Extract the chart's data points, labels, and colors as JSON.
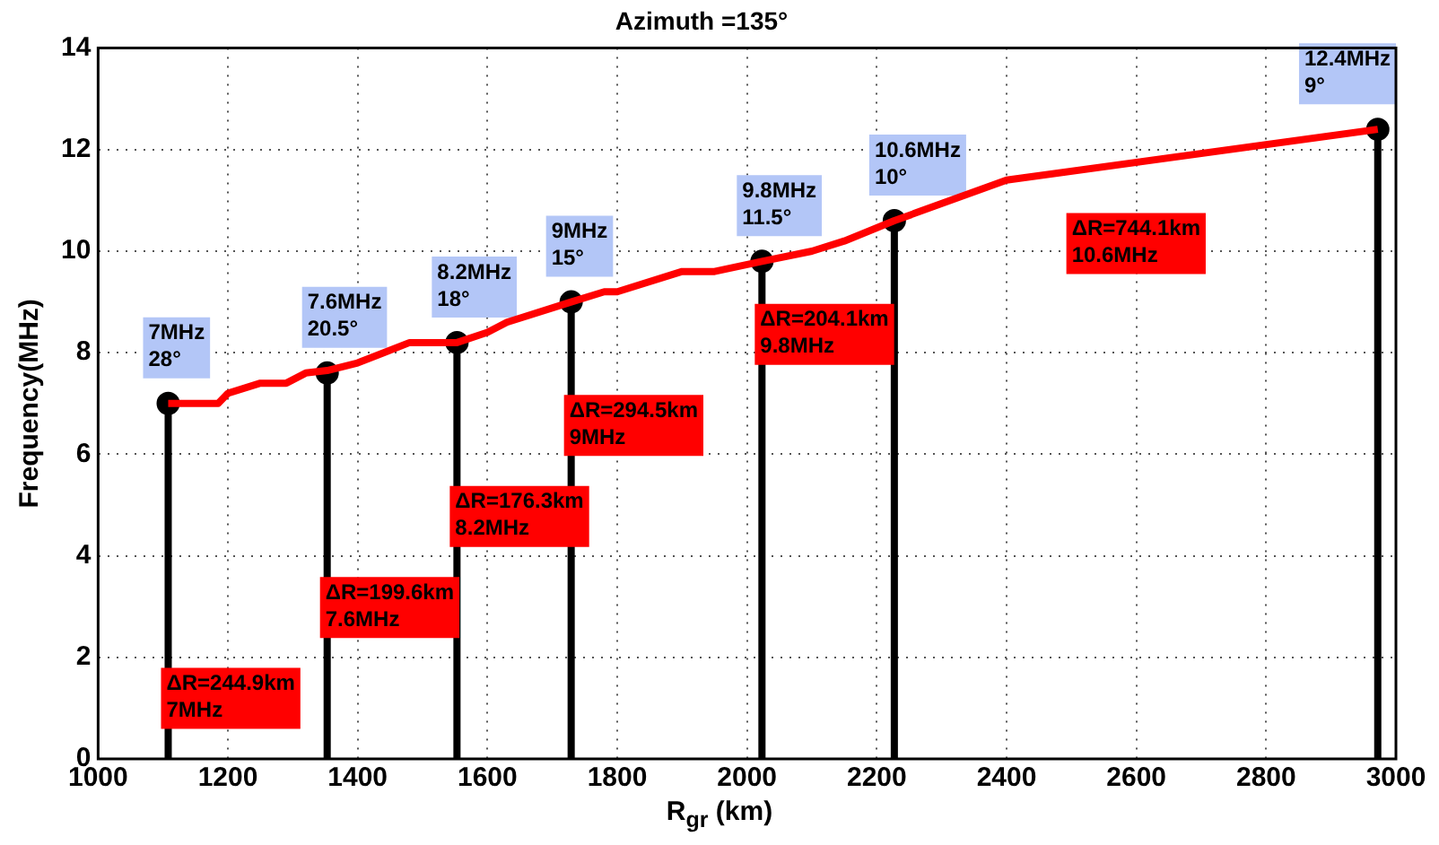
{
  "chart_data": {
    "type": "line",
    "title": "Azimuth =135°",
    "xlabel": "R$_{gr}$ (km)",
    "ylabel": "Frequency(MHz)",
    "xlim": [
      1000,
      3000
    ],
    "xticks": [
      1000,
      1200,
      1400,
      1600,
      1800,
      2000,
      2200,
      2400,
      2600,
      2800,
      3000
    ],
    "ylim": [
      0,
      14
    ],
    "yticks": [
      0,
      2,
      4,
      6,
      8,
      10,
      12,
      14
    ],
    "grid": true,
    "series": [
      {
        "color": "#ff0000",
        "line_style": "solid",
        "marker": "none",
        "x": [
          1108,
          1185,
          1200,
          1250,
          1290,
          1320,
          1353,
          1400,
          1440,
          1480,
          1500,
          1553,
          1600,
          1630,
          1729,
          1780,
          1800,
          1900,
          1950,
          2023,
          2100,
          2150,
          2227,
          2400,
          2972
        ],
        "values": [
          7,
          7,
          7.2,
          7.4,
          7.4,
          7.6,
          7.65,
          7.8,
          8,
          8.2,
          8.2,
          8.2,
          8.4,
          8.6,
          9,
          9.2,
          9.2,
          9.6,
          9.6,
          9.8,
          10,
          10.2,
          10.6,
          11.4,
          12.4
        ]
      },
      {
        "type": "lollipop",
        "color": "#000000",
        "marker": "circle",
        "x": [
          1108,
          1353,
          1553,
          1729,
          2023,
          2227,
          2972
        ],
        "values": [
          7,
          7.6,
          8.2,
          9,
          9.8,
          10.6,
          12.4
        ],
        "value_labels": [
          "7MHz\n28°",
          "7.6MHz\n20.5°",
          "8.2MHz\n18°",
          "9MHz\n15°",
          "9.8MHz\n11.5°",
          "10.6MHz\n10°",
          "12.4MHz\n9°"
        ]
      }
    ],
    "annotations": [
      "ΔR=244.9km\n7MHz",
      "ΔR=199.6km\n7.6MHz",
      "ΔR=176.3km\n8.2MHz",
      "ΔR=294.5km\n9MHz",
      "ΔR=204.1km\n9.8MHz",
      "ΔR=744.1km\n10.6MHz"
    ]
  }
}
